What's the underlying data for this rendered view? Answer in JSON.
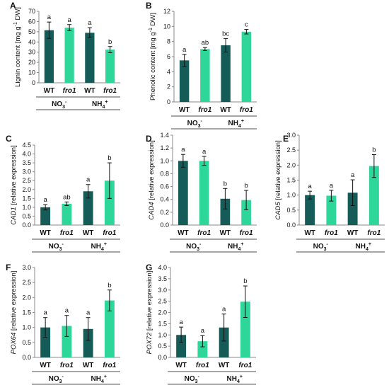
{
  "colors": {
    "wt": "#155c59",
    "fro1": "#2ed69a",
    "axis": "#888888",
    "text": "#111111"
  },
  "chart_data": [
    {
      "panel": "A",
      "type": "bar",
      "categories": [
        "WT",
        "fro1",
        "WT",
        "fro1"
      ],
      "groups": [
        "NO3-",
        "NH4+"
      ],
      "values": [
        51.5,
        54,
        49,
        32.5
      ],
      "errors": [
        8,
        3,
        5,
        3
      ],
      "letters": [
        "a",
        "a",
        "a",
        "b"
      ],
      "ylabel": "Lignin content [mg g-1 DW]",
      "ylim": [
        0,
        70
      ],
      "yticks": [
        "0",
        "10",
        "20",
        "30",
        "40",
        "50",
        "60",
        "70"
      ]
    },
    {
      "panel": "B",
      "type": "bar",
      "categories": [
        "WT",
        "fro1",
        "WT",
        "fro1"
      ],
      "groups": [
        "NO3-",
        "NH4+"
      ],
      "values": [
        5.5,
        7.0,
        7.5,
        9.3
      ],
      "errors": [
        0.8,
        0.2,
        0.9,
        0.3
      ],
      "letters": [
        "a",
        "ab",
        "bc",
        "c"
      ],
      "ylabel": "Phenolic content [mg g-1 DW]",
      "ylim": [
        0,
        12
      ],
      "yticks": [
        "0",
        "2",
        "4",
        "6",
        "8",
        "10",
        "12"
      ]
    },
    {
      "panel": "C",
      "type": "bar",
      "categories": [
        "WT",
        "fro1",
        "WT",
        "fro1"
      ],
      "groups": [
        "NO3-",
        "NH4+"
      ],
      "values": [
        1.0,
        1.2,
        1.9,
        2.5
      ],
      "errors": [
        0.15,
        0.1,
        0.38,
        1.0
      ],
      "letters": [
        "a",
        "ab",
        "a",
        "b"
      ],
      "ylabel_italic": "CAD1",
      "ylabel": "[relative expression]",
      "ylim": [
        0,
        4.5
      ],
      "yticks": [
        "0.0",
        "0.5",
        "1.0",
        "1.5",
        "2.0",
        "2.5",
        "3.0",
        "3.5",
        "4.0",
        "4.5"
      ]
    },
    {
      "panel": "D",
      "type": "bar",
      "categories": [
        "WT",
        "fro1",
        "WT",
        "fro1"
      ],
      "groups": [
        "NO3-",
        "NH4+"
      ],
      "values": [
        1.0,
        1.0,
        0.41,
        0.39
      ],
      "errors": [
        0.1,
        0.07,
        0.16,
        0.15
      ],
      "letters": [
        "a",
        "a",
        "b",
        "b"
      ],
      "ylabel_italic": "CAD4",
      "ylabel": "[relative expression]",
      "ylim": [
        0,
        1.4
      ],
      "yticks": [
        "0.0",
        "0.2",
        "0.4",
        "0.6",
        "0.8",
        "1.0",
        "1.2",
        "1.4"
      ]
    },
    {
      "panel": "E",
      "type": "bar",
      "categories": [
        "WT",
        "fro1",
        "WT",
        "fro1"
      ],
      "groups": [
        "NO3-",
        "NH4+"
      ],
      "values": [
        1.0,
        0.98,
        1.08,
        1.97
      ],
      "errors": [
        0.13,
        0.18,
        0.43,
        0.38
      ],
      "letters": [
        "a",
        "a",
        "a",
        "b"
      ],
      "ylabel_italic": "CAD5",
      "ylabel": "[relative expression]",
      "ylim": [
        0,
        3.0
      ],
      "yticks": [
        "0.0",
        "0.5",
        "1.0",
        "1.5",
        "2.0",
        "2.5",
        "3.0"
      ]
    },
    {
      "panel": "F",
      "type": "bar",
      "categories": [
        "WT",
        "fro1",
        "WT",
        "fro1"
      ],
      "groups": [
        "NO3-",
        "NH4+"
      ],
      "values": [
        1.0,
        1.05,
        0.95,
        1.9
      ],
      "errors": [
        0.33,
        0.35,
        0.38,
        0.35
      ],
      "letters": [
        "a",
        "a",
        "a",
        "b"
      ],
      "ylabel_italic": "POX64",
      "ylabel": "[relative expression]",
      "ylim": [
        0,
        3.0
      ],
      "yticks": [
        "0.0",
        "0.5",
        "1.0",
        "1.5",
        "2.0",
        "2.5",
        "3.0"
      ]
    },
    {
      "panel": "G",
      "type": "bar",
      "categories": [
        "WT",
        "fro1",
        "WT",
        "fro1"
      ],
      "groups": [
        "NO3-",
        "NH4+"
      ],
      "values": [
        1.0,
        0.72,
        1.33,
        2.48
      ],
      "errors": [
        0.35,
        0.25,
        0.6,
        0.7
      ],
      "letters": [
        "a",
        "a",
        "a",
        "b"
      ],
      "ylabel_italic": "POX72",
      "ylabel": "[relative expression]",
      "ylim": [
        0,
        4.0
      ],
      "yticks": [
        "0.0",
        "0.5",
        "1.0",
        "1.5",
        "2.0",
        "2.5",
        "3.0",
        "3.5",
        "4.0"
      ]
    }
  ]
}
